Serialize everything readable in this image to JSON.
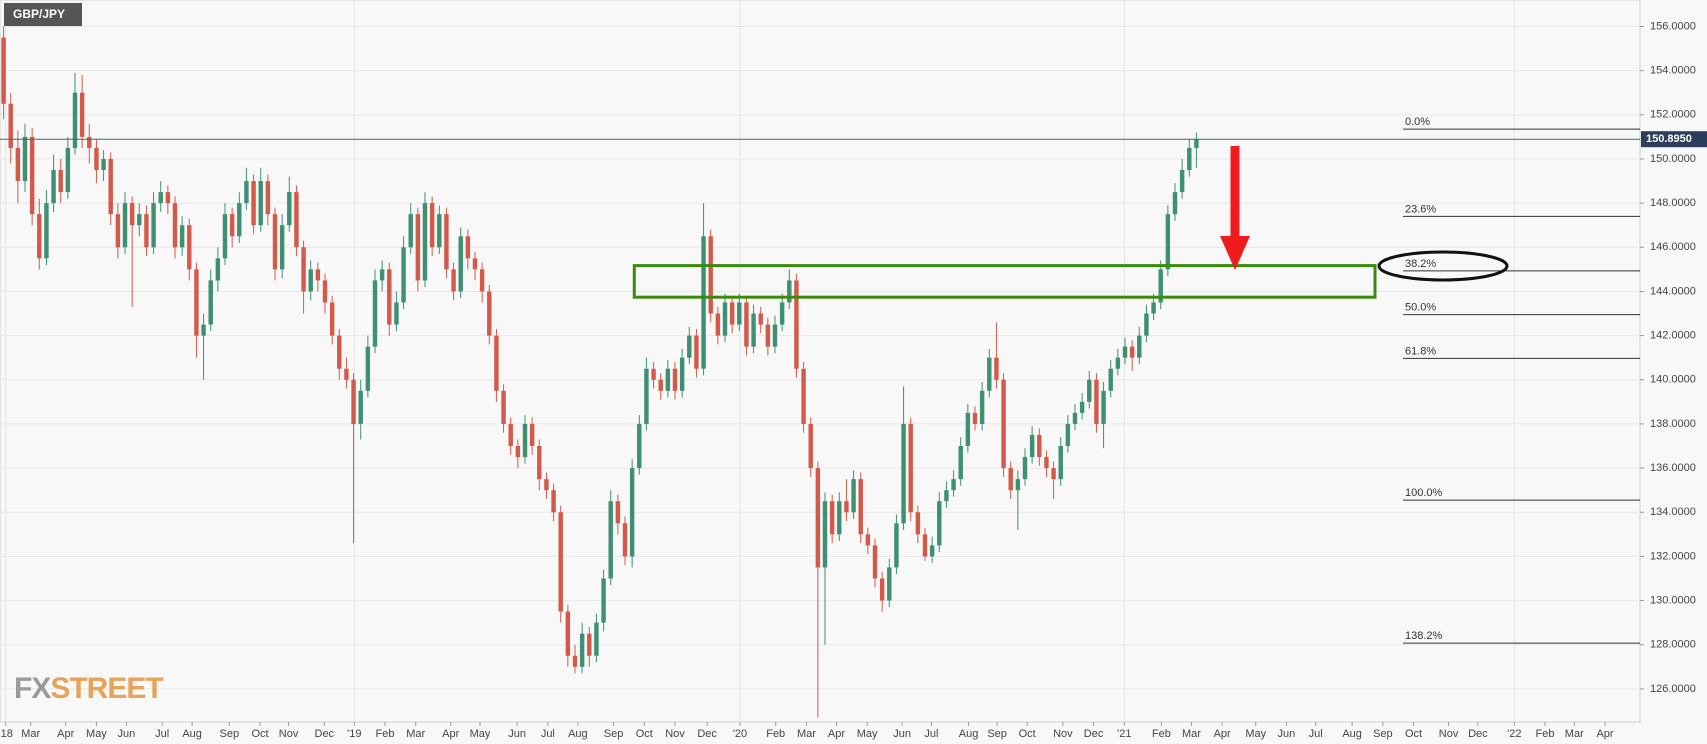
{
  "chart_data": {
    "type": "candlestick",
    "title": "GBP/JPY",
    "up_color": "#3f8f72",
    "down_color": "#d35a4a",
    "xlim": [
      -0.5,
      229.1
    ],
    "xticks": [
      {
        "value": 0.3,
        "label": "'18"
      },
      {
        "value": 3.8,
        "label": "Mar"
      },
      {
        "value": 8.7,
        "label": "Apr"
      },
      {
        "value": 13.0,
        "label": "May"
      },
      {
        "value": 17.2,
        "label": "Jun"
      },
      {
        "value": 22.2,
        "label": "Jul"
      },
      {
        "value": 26.4,
        "label": "Aug"
      },
      {
        "value": 31.6,
        "label": "Sep"
      },
      {
        "value": 35.9,
        "label": "Oct"
      },
      {
        "value": 39.9,
        "label": "Nov"
      },
      {
        "value": 44.9,
        "label": "Dec"
      },
      {
        "value": 49.1,
        "label": "'19"
      },
      {
        "value": 53.4,
        "label": "Feb"
      },
      {
        "value": 57.7,
        "label": "Mar"
      },
      {
        "value": 62.6,
        "label": "Apr"
      },
      {
        "value": 66.7,
        "label": "May"
      },
      {
        "value": 71.9,
        "label": "Jun"
      },
      {
        "value": 76.2,
        "label": "Jul"
      },
      {
        "value": 80.4,
        "label": "Aug"
      },
      {
        "value": 85.4,
        "label": "Sep"
      },
      {
        "value": 89.7,
        "label": "Oct"
      },
      {
        "value": 94.0,
        "label": "Nov"
      },
      {
        "value": 98.5,
        "label": "Dec"
      },
      {
        "value": 103.1,
        "label": "'20"
      },
      {
        "value": 108.1,
        "label": "Feb"
      },
      {
        "value": 112.4,
        "label": "Mar"
      },
      {
        "value": 116.6,
        "label": "Apr"
      },
      {
        "value": 120.9,
        "label": "May"
      },
      {
        "value": 125.8,
        "label": "Jun"
      },
      {
        "value": 129.9,
        "label": "Jul"
      },
      {
        "value": 135.1,
        "label": "Aug"
      },
      {
        "value": 139.1,
        "label": "Sep"
      },
      {
        "value": 143.3,
        "label": "Oct"
      },
      {
        "value": 148.3,
        "label": "Nov"
      },
      {
        "value": 152.6,
        "label": "Dec"
      },
      {
        "value": 156.9,
        "label": "'21"
      },
      {
        "value": 162.1,
        "label": "Feb"
      },
      {
        "value": 166.3,
        "label": "Mar"
      },
      {
        "value": 170.6,
        "label": "Apr"
      },
      {
        "value": 175.3,
        "label": "May"
      },
      {
        "value": 179.6,
        "label": "Jun"
      },
      {
        "value": 183.7,
        "label": "Jul"
      },
      {
        "value": 188.8,
        "label": "Aug"
      },
      {
        "value": 193.1,
        "label": "Sep"
      },
      {
        "value": 197.4,
        "label": "Oct"
      },
      {
        "value": 202.3,
        "label": "Nov"
      },
      {
        "value": 206.4,
        "label": "Dec"
      },
      {
        "value": 211.5,
        "label": "'22"
      },
      {
        "value": 215.8,
        "label": "Feb"
      },
      {
        "value": 219.9,
        "label": "Mar"
      },
      {
        "value": 224.2,
        "label": "Apr"
      }
    ],
    "ylim": [
      124.5,
      157.2
    ],
    "yticks": [
      {
        "value": 126,
        "label": "126.0000"
      },
      {
        "value": 128,
        "label": "128.0000"
      },
      {
        "value": 130,
        "label": "130.0000"
      },
      {
        "value": 132,
        "label": "132.0000"
      },
      {
        "value": 134,
        "label": "134.0000"
      },
      {
        "value": 136,
        "label": "136.0000"
      },
      {
        "value": 138,
        "label": "138.0000"
      },
      {
        "value": 140,
        "label": "140.0000"
      },
      {
        "value": 142,
        "label": "142.0000"
      },
      {
        "value": 144,
        "label": "144.0000"
      },
      {
        "value": 146,
        "label": "146.0000"
      },
      {
        "value": 148,
        "label": "148.0000"
      },
      {
        "value": 150,
        "label": "150.0000"
      },
      {
        "value": 152,
        "label": "152.0000"
      },
      {
        "value": 154,
        "label": "154.0000"
      },
      {
        "value": 156,
        "label": "156.0000"
      }
    ],
    "grid": true,
    "current_price": {
      "value": 150.895,
      "label": "150.8950"
    },
    "fib_levels": [
      {
        "label": "0.0%",
        "price": 151.35
      },
      {
        "label": "23.6%",
        "price": 147.4
      },
      {
        "label": "38.2%",
        "price": 144.93
      },
      {
        "label": "50.0%",
        "price": 142.95
      },
      {
        "label": "61.8%",
        "price": 140.97
      },
      {
        "label": "100.0%",
        "price": 134.55
      },
      {
        "label": "138.2%",
        "price": 128.07
      }
    ],
    "zone": {
      "x": [
        88.3,
        192.0
      ],
      "y": [
        143.74,
        145.17
      ]
    },
    "ohlc": [
      [
        155.5,
        156.0,
        151.8,
        152.5
      ],
      [
        152.5,
        153.0,
        149.8,
        150.5
      ],
      [
        150.5,
        151.3,
        148.0,
        149.0
      ],
      [
        149.0,
        151.6,
        148.5,
        151.0
      ],
      [
        151.0,
        151.4,
        147.0,
        147.5
      ],
      [
        147.5,
        148.2,
        145.0,
        145.5
      ],
      [
        145.5,
        148.6,
        145.2,
        148.0
      ],
      [
        148.0,
        150.2,
        147.6,
        149.5
      ],
      [
        149.5,
        150.0,
        148.0,
        148.5
      ],
      [
        148.5,
        151.0,
        148.2,
        150.5
      ],
      [
        150.5,
        153.9,
        150.2,
        153.0
      ],
      [
        153.0,
        153.8,
        150.5,
        151.0
      ],
      [
        151.0,
        151.6,
        149.8,
        150.5
      ],
      [
        150.5,
        150.9,
        148.9,
        149.5
      ],
      [
        149.5,
        150.4,
        149.0,
        150.0
      ],
      [
        150.0,
        150.3,
        147.0,
        147.5
      ],
      [
        147.5,
        148.0,
        145.5,
        146.0
      ],
      [
        146.0,
        148.5,
        145.7,
        148.0
      ],
      [
        148.0,
        148.3,
        143.3,
        147.0
      ],
      [
        147.0,
        148.0,
        146.5,
        147.5
      ],
      [
        147.5,
        147.9,
        145.6,
        146.0
      ],
      [
        146.0,
        148.5,
        145.7,
        148.0
      ],
      [
        148.0,
        149.0,
        147.6,
        148.5
      ],
      [
        148.5,
        148.8,
        147.5,
        148.0
      ],
      [
        148.0,
        148.3,
        145.5,
        146.0
      ],
      [
        146.0,
        147.4,
        145.6,
        147.0
      ],
      [
        147.0,
        147.3,
        144.5,
        145.0
      ],
      [
        145.0,
        145.3,
        141.0,
        142.0
      ],
      [
        142.0,
        143.0,
        140.0,
        142.5
      ],
      [
        142.5,
        145.0,
        142.2,
        144.5
      ],
      [
        144.5,
        146.0,
        144.0,
        145.5
      ],
      [
        145.5,
        148.0,
        145.2,
        147.5
      ],
      [
        147.5,
        147.8,
        146.0,
        146.5
      ],
      [
        146.5,
        148.5,
        146.2,
        148.0
      ],
      [
        148.0,
        149.6,
        147.7,
        149.0
      ],
      [
        149.0,
        149.3,
        146.6,
        147.0
      ],
      [
        147.0,
        149.6,
        146.7,
        149.0
      ],
      [
        149.0,
        149.3,
        147.0,
        147.5
      ],
      [
        147.5,
        147.8,
        144.5,
        145.0
      ],
      [
        145.0,
        147.5,
        144.6,
        147.0
      ],
      [
        147.0,
        149.2,
        146.7,
        148.5
      ],
      [
        148.5,
        148.8,
        145.6,
        146.0
      ],
      [
        146.0,
        146.3,
        143.0,
        144.0
      ],
      [
        144.0,
        145.4,
        143.6,
        145.0
      ],
      [
        145.0,
        145.3,
        144.0,
        144.5
      ],
      [
        144.5,
        144.8,
        143.0,
        143.5
      ],
      [
        143.5,
        143.8,
        141.6,
        142.0
      ],
      [
        142.0,
        142.3,
        140.0,
        140.5
      ],
      [
        140.5,
        141.0,
        139.6,
        140.0
      ],
      [
        140.0,
        140.3,
        132.6,
        138.0
      ],
      [
        138.0,
        140.0,
        137.3,
        139.5
      ],
      [
        139.5,
        142.0,
        139.2,
        141.5
      ],
      [
        141.5,
        145.0,
        141.2,
        144.5
      ],
      [
        144.5,
        145.4,
        144.0,
        145.0
      ],
      [
        145.0,
        145.3,
        142.0,
        142.5
      ],
      [
        142.5,
        144.0,
        142.2,
        143.5
      ],
      [
        143.5,
        146.5,
        143.2,
        146.0
      ],
      [
        146.0,
        148.0,
        145.7,
        147.5
      ],
      [
        147.5,
        147.8,
        144.0,
        144.5
      ],
      [
        144.5,
        148.5,
        144.2,
        148.0
      ],
      [
        148.0,
        148.3,
        145.6,
        146.0
      ],
      [
        146.0,
        147.9,
        145.7,
        147.5
      ],
      [
        147.5,
        147.8,
        144.6,
        145.0
      ],
      [
        145.0,
        145.3,
        143.6,
        144.0
      ],
      [
        144.0,
        146.9,
        143.7,
        146.5
      ],
      [
        146.5,
        146.8,
        145.0,
        145.5
      ],
      [
        145.5,
        145.8,
        144.5,
        145.0
      ],
      [
        145.0,
        145.3,
        143.5,
        144.0
      ],
      [
        144.0,
        144.3,
        141.6,
        142.0
      ],
      [
        142.0,
        142.3,
        139.0,
        139.5
      ],
      [
        139.5,
        139.8,
        137.6,
        138.0
      ],
      [
        138.0,
        138.3,
        136.6,
        137.0
      ],
      [
        137.0,
        137.3,
        136.0,
        136.5
      ],
      [
        136.5,
        138.4,
        136.2,
        138.0
      ],
      [
        138.0,
        138.3,
        136.6,
        137.0
      ],
      [
        137.0,
        137.3,
        135.0,
        135.5
      ],
      [
        135.5,
        135.8,
        134.6,
        135.0
      ],
      [
        135.0,
        135.3,
        133.6,
        134.0
      ],
      [
        134.0,
        134.3,
        129.0,
        129.5
      ],
      [
        129.5,
        129.8,
        127.0,
        127.5
      ],
      [
        127.5,
        128.0,
        126.7,
        127.0
      ],
      [
        127.0,
        129.0,
        126.7,
        128.5
      ],
      [
        128.5,
        128.8,
        127.0,
        127.5
      ],
      [
        127.5,
        129.4,
        127.2,
        129.0
      ],
      [
        129.0,
        131.4,
        128.6,
        131.0
      ],
      [
        131.0,
        135.0,
        130.7,
        134.5
      ],
      [
        134.5,
        134.8,
        133.0,
        133.5
      ],
      [
        133.5,
        133.8,
        131.6,
        132.0
      ],
      [
        132.0,
        136.4,
        131.5,
        136.0
      ],
      [
        136.0,
        138.4,
        135.7,
        138.0
      ],
      [
        138.0,
        141.0,
        137.7,
        140.5
      ],
      [
        140.5,
        140.8,
        139.6,
        140.0
      ],
      [
        140.0,
        140.3,
        139.1,
        139.5
      ],
      [
        139.5,
        140.9,
        139.2,
        140.5
      ],
      [
        140.5,
        140.8,
        139.1,
        139.5
      ],
      [
        139.5,
        141.4,
        139.2,
        141.0
      ],
      [
        141.0,
        142.4,
        140.7,
        142.0
      ],
      [
        142.0,
        142.3,
        140.1,
        140.5
      ],
      [
        140.5,
        148.0,
        140.2,
        146.5
      ],
      [
        146.5,
        146.8,
        142.6,
        143.0
      ],
      [
        143.0,
        143.3,
        141.6,
        142.0
      ],
      [
        142.0,
        143.9,
        141.7,
        143.5
      ],
      [
        143.5,
        143.8,
        142.1,
        142.5
      ],
      [
        142.5,
        143.9,
        142.2,
        143.5
      ],
      [
        143.5,
        143.8,
        141.1,
        141.5
      ],
      [
        141.5,
        143.4,
        141.2,
        143.0
      ],
      [
        143.0,
        143.3,
        142.1,
        142.5
      ],
      [
        142.5,
        142.8,
        141.1,
        141.5
      ],
      [
        141.5,
        142.9,
        141.2,
        142.5
      ],
      [
        142.5,
        143.9,
        142.2,
        143.5
      ],
      [
        143.5,
        145.0,
        143.2,
        144.5
      ],
      [
        144.5,
        144.8,
        140.1,
        140.5
      ],
      [
        140.5,
        140.8,
        137.6,
        138.0
      ],
      [
        138.0,
        138.3,
        135.6,
        136.0
      ],
      [
        136.0,
        136.3,
        124.7,
        131.5
      ],
      [
        131.5,
        134.9,
        128.0,
        134.5
      ],
      [
        134.5,
        134.8,
        132.6,
        133.0
      ],
      [
        133.0,
        134.9,
        132.7,
        134.5
      ],
      [
        134.5,
        135.5,
        133.6,
        134.0
      ],
      [
        134.0,
        135.9,
        133.7,
        135.5
      ],
      [
        135.5,
        135.8,
        132.6,
        133.0
      ],
      [
        133.0,
        133.3,
        132.1,
        132.5
      ],
      [
        132.5,
        132.8,
        130.6,
        131.0
      ],
      [
        131.0,
        131.3,
        129.5,
        130.0
      ],
      [
        130.0,
        131.9,
        129.7,
        131.5
      ],
      [
        131.5,
        133.9,
        131.2,
        133.5
      ],
      [
        133.5,
        139.7,
        133.2,
        138.0
      ],
      [
        138.0,
        138.3,
        133.6,
        134.0
      ],
      [
        134.0,
        134.3,
        132.6,
        133.0
      ],
      [
        133.0,
        133.3,
        131.8,
        132.0
      ],
      [
        132.0,
        132.9,
        131.7,
        132.5
      ],
      [
        132.5,
        134.9,
        132.2,
        134.5
      ],
      [
        134.5,
        135.4,
        134.2,
        135.0
      ],
      [
        135.0,
        135.9,
        134.7,
        135.5
      ],
      [
        135.5,
        137.4,
        135.2,
        137.0
      ],
      [
        137.0,
        138.9,
        136.7,
        138.5
      ],
      [
        138.5,
        138.8,
        137.7,
        138.0
      ],
      [
        138.0,
        139.9,
        137.7,
        139.5
      ],
      [
        139.5,
        141.4,
        139.2,
        141.0
      ],
      [
        141.0,
        142.6,
        139.6,
        140.0
      ],
      [
        140.0,
        140.3,
        135.6,
        136.0
      ],
      [
        136.0,
        136.3,
        134.6,
        135.0
      ],
      [
        135.0,
        135.9,
        133.2,
        135.5
      ],
      [
        135.5,
        136.9,
        135.2,
        136.5
      ],
      [
        136.5,
        137.9,
        136.2,
        137.5
      ],
      [
        137.5,
        137.8,
        136.1,
        136.5
      ],
      [
        136.5,
        136.8,
        135.6,
        136.0
      ],
      [
        136.0,
        136.3,
        134.6,
        135.5
      ],
      [
        135.5,
        137.4,
        135.2,
        137.0
      ],
      [
        137.0,
        138.4,
        136.7,
        138.0
      ],
      [
        138.0,
        138.9,
        137.7,
        138.5
      ],
      [
        138.5,
        139.4,
        138.2,
        139.0
      ],
      [
        139.0,
        140.4,
        138.7,
        140.0
      ],
      [
        140.0,
        140.3,
        137.6,
        138.0
      ],
      [
        138.0,
        139.9,
        136.9,
        139.5
      ],
      [
        139.5,
        140.9,
        139.2,
        140.5
      ],
      [
        140.5,
        141.4,
        140.2,
        141.0
      ],
      [
        141.0,
        141.9,
        140.7,
        141.5
      ],
      [
        141.5,
        141.8,
        140.4,
        141.0
      ],
      [
        141.0,
        142.4,
        140.7,
        142.0
      ],
      [
        142.0,
        143.4,
        141.7,
        143.0
      ],
      [
        143.0,
        143.9,
        142.7,
        143.5
      ],
      [
        143.5,
        145.4,
        143.2,
        145.0
      ],
      [
        145.0,
        147.9,
        144.7,
        147.5
      ],
      [
        147.5,
        148.9,
        147.2,
        148.5
      ],
      [
        148.5,
        150.0,
        148.2,
        149.5
      ],
      [
        149.5,
        150.9,
        149.2,
        150.5
      ],
      [
        150.5,
        151.2,
        149.6,
        150.9
      ]
    ],
    "logo": {
      "prefix": "FX",
      "suffix": "STREET"
    }
  }
}
